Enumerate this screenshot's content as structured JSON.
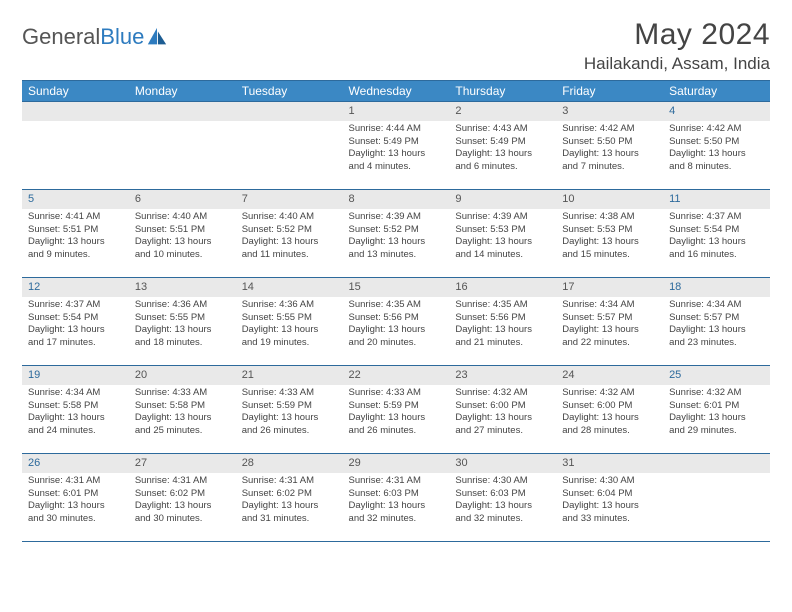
{
  "branding": {
    "word1": "General",
    "word2": "Blue"
  },
  "header": {
    "title": "May 2024",
    "location": "Hailakandi, Assam, India"
  },
  "style": {
    "header_bg": "#3b88c4",
    "header_border": "#2d6a9c",
    "daynum_bg": "#e9e9e9",
    "text_color": "#444444",
    "weekend_num_color": "#2d6a9c"
  },
  "daynames": [
    "Sunday",
    "Monday",
    "Tuesday",
    "Wednesday",
    "Thursday",
    "Friday",
    "Saturday"
  ],
  "weeks": [
    [
      {
        "n": "",
        "sunrise": "",
        "sunset": "",
        "daylight": ""
      },
      {
        "n": "",
        "sunrise": "",
        "sunset": "",
        "daylight": ""
      },
      {
        "n": "",
        "sunrise": "",
        "sunset": "",
        "daylight": ""
      },
      {
        "n": "1",
        "sunrise": "Sunrise: 4:44 AM",
        "sunset": "Sunset: 5:49 PM",
        "daylight": "Daylight: 13 hours and 4 minutes."
      },
      {
        "n": "2",
        "sunrise": "Sunrise: 4:43 AM",
        "sunset": "Sunset: 5:49 PM",
        "daylight": "Daylight: 13 hours and 6 minutes."
      },
      {
        "n": "3",
        "sunrise": "Sunrise: 4:42 AM",
        "sunset": "Sunset: 5:50 PM",
        "daylight": "Daylight: 13 hours and 7 minutes."
      },
      {
        "n": "4",
        "sunrise": "Sunrise: 4:42 AM",
        "sunset": "Sunset: 5:50 PM",
        "daylight": "Daylight: 13 hours and 8 minutes."
      }
    ],
    [
      {
        "n": "5",
        "sunrise": "Sunrise: 4:41 AM",
        "sunset": "Sunset: 5:51 PM",
        "daylight": "Daylight: 13 hours and 9 minutes."
      },
      {
        "n": "6",
        "sunrise": "Sunrise: 4:40 AM",
        "sunset": "Sunset: 5:51 PM",
        "daylight": "Daylight: 13 hours and 10 minutes."
      },
      {
        "n": "7",
        "sunrise": "Sunrise: 4:40 AM",
        "sunset": "Sunset: 5:52 PM",
        "daylight": "Daylight: 13 hours and 11 minutes."
      },
      {
        "n": "8",
        "sunrise": "Sunrise: 4:39 AM",
        "sunset": "Sunset: 5:52 PM",
        "daylight": "Daylight: 13 hours and 13 minutes."
      },
      {
        "n": "9",
        "sunrise": "Sunrise: 4:39 AM",
        "sunset": "Sunset: 5:53 PM",
        "daylight": "Daylight: 13 hours and 14 minutes."
      },
      {
        "n": "10",
        "sunrise": "Sunrise: 4:38 AM",
        "sunset": "Sunset: 5:53 PM",
        "daylight": "Daylight: 13 hours and 15 minutes."
      },
      {
        "n": "11",
        "sunrise": "Sunrise: 4:37 AM",
        "sunset": "Sunset: 5:54 PM",
        "daylight": "Daylight: 13 hours and 16 minutes."
      }
    ],
    [
      {
        "n": "12",
        "sunrise": "Sunrise: 4:37 AM",
        "sunset": "Sunset: 5:54 PM",
        "daylight": "Daylight: 13 hours and 17 minutes."
      },
      {
        "n": "13",
        "sunrise": "Sunrise: 4:36 AM",
        "sunset": "Sunset: 5:55 PM",
        "daylight": "Daylight: 13 hours and 18 minutes."
      },
      {
        "n": "14",
        "sunrise": "Sunrise: 4:36 AM",
        "sunset": "Sunset: 5:55 PM",
        "daylight": "Daylight: 13 hours and 19 minutes."
      },
      {
        "n": "15",
        "sunrise": "Sunrise: 4:35 AM",
        "sunset": "Sunset: 5:56 PM",
        "daylight": "Daylight: 13 hours and 20 minutes."
      },
      {
        "n": "16",
        "sunrise": "Sunrise: 4:35 AM",
        "sunset": "Sunset: 5:56 PM",
        "daylight": "Daylight: 13 hours and 21 minutes."
      },
      {
        "n": "17",
        "sunrise": "Sunrise: 4:34 AM",
        "sunset": "Sunset: 5:57 PM",
        "daylight": "Daylight: 13 hours and 22 minutes."
      },
      {
        "n": "18",
        "sunrise": "Sunrise: 4:34 AM",
        "sunset": "Sunset: 5:57 PM",
        "daylight": "Daylight: 13 hours and 23 minutes."
      }
    ],
    [
      {
        "n": "19",
        "sunrise": "Sunrise: 4:34 AM",
        "sunset": "Sunset: 5:58 PM",
        "daylight": "Daylight: 13 hours and 24 minutes."
      },
      {
        "n": "20",
        "sunrise": "Sunrise: 4:33 AM",
        "sunset": "Sunset: 5:58 PM",
        "daylight": "Daylight: 13 hours and 25 minutes."
      },
      {
        "n": "21",
        "sunrise": "Sunrise: 4:33 AM",
        "sunset": "Sunset: 5:59 PM",
        "daylight": "Daylight: 13 hours and 26 minutes."
      },
      {
        "n": "22",
        "sunrise": "Sunrise: 4:33 AM",
        "sunset": "Sunset: 5:59 PM",
        "daylight": "Daylight: 13 hours and 26 minutes."
      },
      {
        "n": "23",
        "sunrise": "Sunrise: 4:32 AM",
        "sunset": "Sunset: 6:00 PM",
        "daylight": "Daylight: 13 hours and 27 minutes."
      },
      {
        "n": "24",
        "sunrise": "Sunrise: 4:32 AM",
        "sunset": "Sunset: 6:00 PM",
        "daylight": "Daylight: 13 hours and 28 minutes."
      },
      {
        "n": "25",
        "sunrise": "Sunrise: 4:32 AM",
        "sunset": "Sunset: 6:01 PM",
        "daylight": "Daylight: 13 hours and 29 minutes."
      }
    ],
    [
      {
        "n": "26",
        "sunrise": "Sunrise: 4:31 AM",
        "sunset": "Sunset: 6:01 PM",
        "daylight": "Daylight: 13 hours and 30 minutes."
      },
      {
        "n": "27",
        "sunrise": "Sunrise: 4:31 AM",
        "sunset": "Sunset: 6:02 PM",
        "daylight": "Daylight: 13 hours and 30 minutes."
      },
      {
        "n": "28",
        "sunrise": "Sunrise: 4:31 AM",
        "sunset": "Sunset: 6:02 PM",
        "daylight": "Daylight: 13 hours and 31 minutes."
      },
      {
        "n": "29",
        "sunrise": "Sunrise: 4:31 AM",
        "sunset": "Sunset: 6:03 PM",
        "daylight": "Daylight: 13 hours and 32 minutes."
      },
      {
        "n": "30",
        "sunrise": "Sunrise: 4:30 AM",
        "sunset": "Sunset: 6:03 PM",
        "daylight": "Daylight: 13 hours and 32 minutes."
      },
      {
        "n": "31",
        "sunrise": "Sunrise: 4:30 AM",
        "sunset": "Sunset: 6:04 PM",
        "daylight": "Daylight: 13 hours and 33 minutes."
      },
      {
        "n": "",
        "sunrise": "",
        "sunset": "",
        "daylight": ""
      }
    ]
  ]
}
